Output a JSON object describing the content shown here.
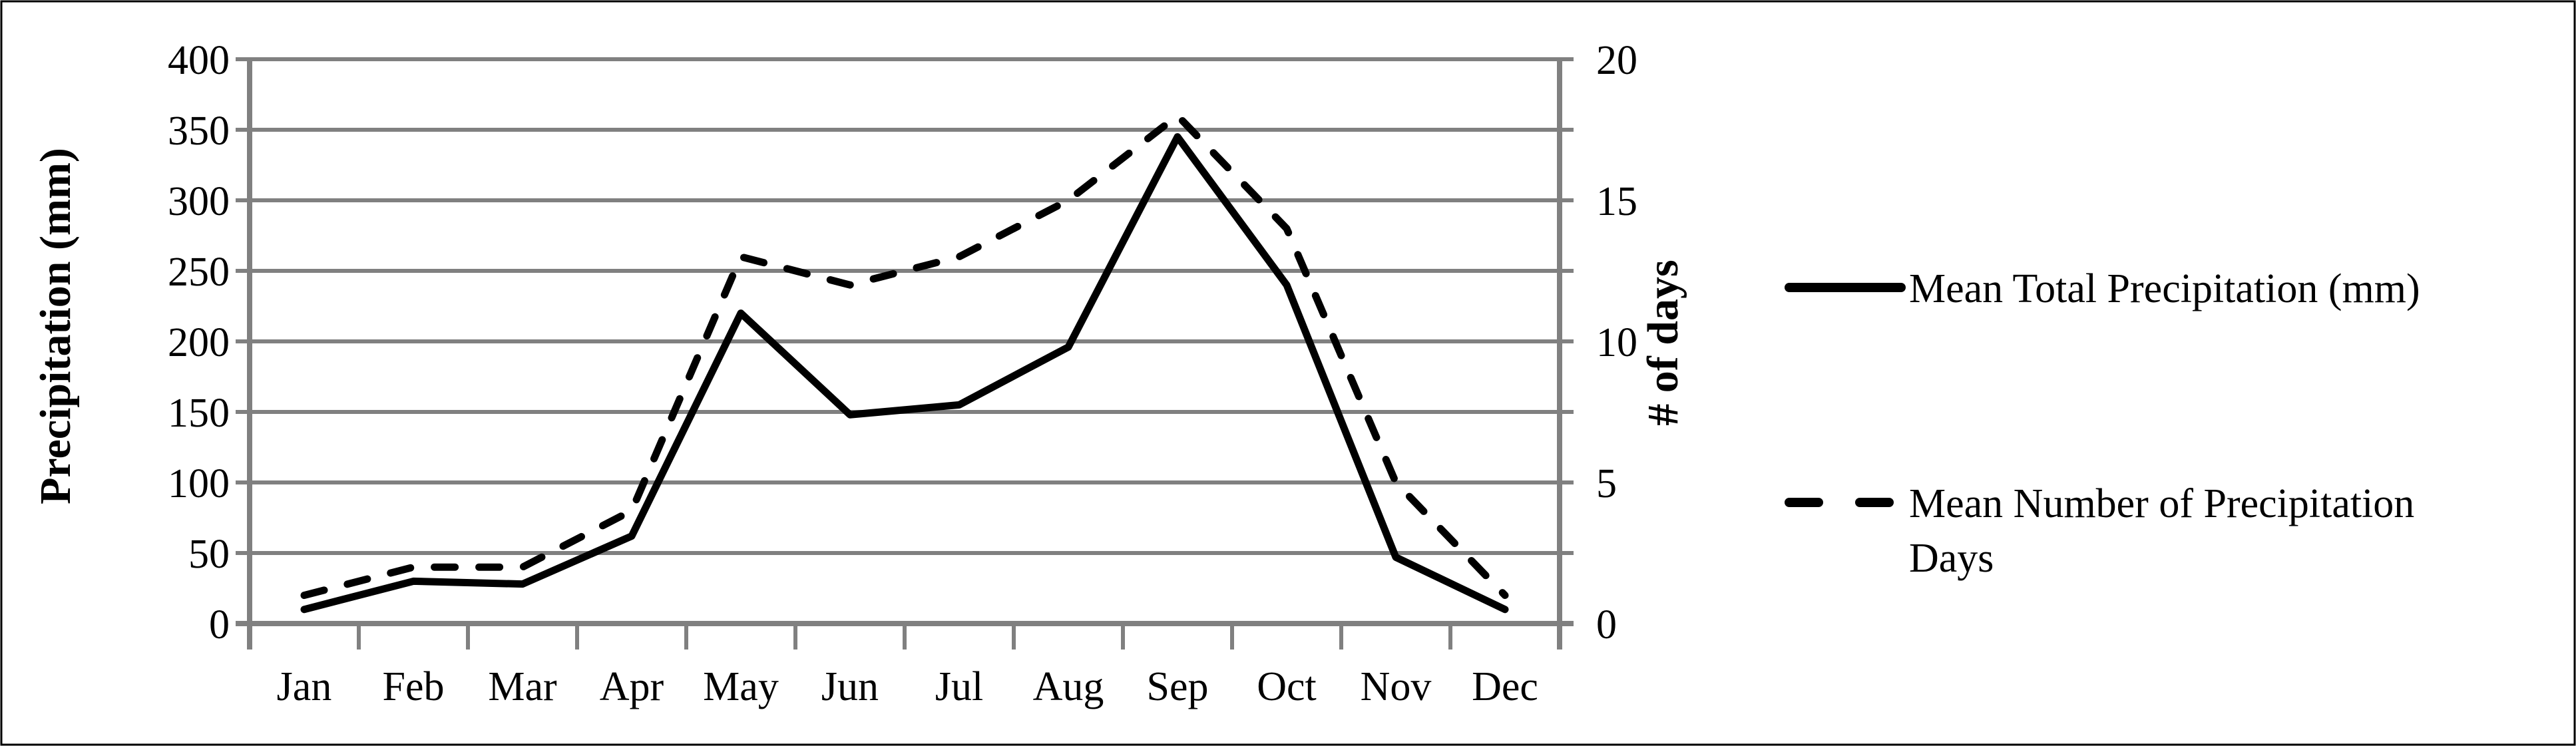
{
  "chart_data": {
    "type": "line",
    "title": "",
    "categories": [
      "Jan",
      "Feb",
      "Mar",
      "Apr",
      "May",
      "Jun",
      "Jul",
      "Aug",
      "Sep",
      "Oct",
      "Nov",
      "Dec"
    ],
    "series": [
      {
        "name": "Mean Total Precipitation (mm)",
        "axis": "left",
        "line_style": "solid",
        "color": "#000000",
        "values": [
          10,
          30,
          28,
          62,
          220,
          148,
          155,
          196,
          345,
          240,
          47,
          10
        ]
      },
      {
        "name": "Mean Number of Precipitation Days",
        "axis": "right",
        "line_style": "dashed",
        "color": "#000000",
        "values": [
          1,
          2,
          2,
          4,
          13,
          12,
          13,
          15,
          18,
          14,
          5,
          1
        ]
      }
    ],
    "left_axis": {
      "label": "Precipitation (mm)",
      "min": 0,
      "max": 400,
      "step": 50,
      "tick_labels": [
        "0",
        "50",
        "100",
        "150",
        "200",
        "250",
        "300",
        "350",
        "400"
      ]
    },
    "right_axis": {
      "label": "# of days",
      "min": 0,
      "max": 20,
      "step": 5,
      "tick_labels": [
        "0",
        "5",
        "10",
        "15",
        "20"
      ]
    },
    "x_axis": {
      "label": ""
    },
    "grid": true,
    "legend_position": "right"
  },
  "colors": {
    "line": "#000000",
    "grid": "#808080",
    "axis": "#808080",
    "background": "#ffffff",
    "frame": "#000000"
  }
}
